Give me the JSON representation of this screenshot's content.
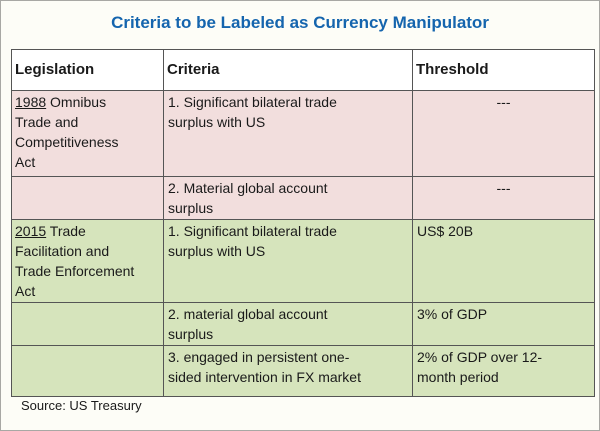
{
  "title": "Criteria to be Labeled as Currency Manipulator",
  "source_note": "Source: US Treasury",
  "colors": {
    "title_blue": "#1565AE",
    "rose_row_bg": "#F2DEDD",
    "green_row_bg": "#D6E4BC",
    "table_border": "#555555",
    "page_bg": "#FDFDF7"
  },
  "chart_data": {
    "type": "table",
    "title": "Criteria to be Labeled as Currency Manipulator",
    "source": "Source: US Treasury",
    "headers": [
      "Legislation",
      "Criteria",
      "Threshold"
    ],
    "rows": [
      {
        "legislation_year": "1988",
        "legislation_rest": " Omnibus Trade and Competitiveness Act",
        "criteria": "1. Significant bilateral trade surplus with US",
        "threshold": "---",
        "group_color": "rose"
      },
      {
        "legislation_year": "",
        "legislation_rest": "",
        "criteria": "2. Material global account surplus",
        "threshold": "---",
        "group_color": "rose"
      },
      {
        "legislation_year": "2015",
        "legislation_rest": " Trade Facilitation and Trade Enforcement Act",
        "criteria": "1. Significant bilateral trade surplus with US",
        "threshold": "US$ 20B",
        "group_color": "green"
      },
      {
        "legislation_year": "",
        "legislation_rest": "",
        "criteria": "2. material global account surplus",
        "threshold": "3% of GDP",
        "group_color": "green"
      },
      {
        "legislation_year": "",
        "legislation_rest": "",
        "criteria": "3. engaged in persistent one-sided intervention in FX market",
        "threshold": "2% of GDP over 12-month period",
        "group_color": "green"
      }
    ]
  }
}
